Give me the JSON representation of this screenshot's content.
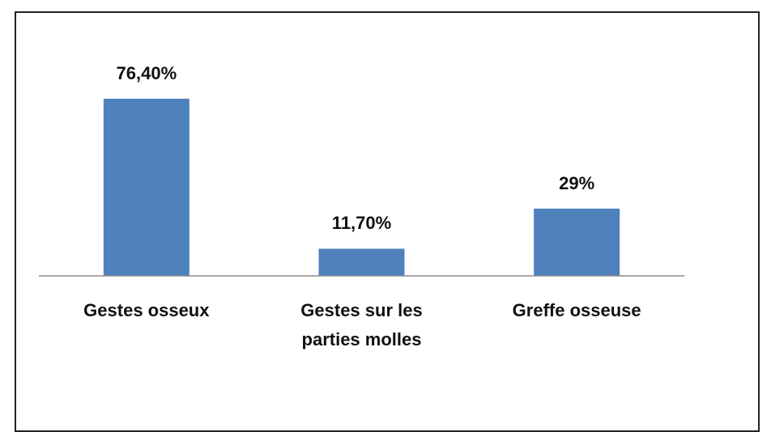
{
  "chart_data": {
    "type": "bar",
    "categories": [
      "Gestes osseux",
      "Gestes sur les parties molles",
      "Greffe osseuse"
    ],
    "values": [
      76.4,
      11.7,
      29
    ],
    "value_labels": [
      "76,40%",
      "11,70%",
      "29%"
    ],
    "color": "#4f81bd"
  }
}
